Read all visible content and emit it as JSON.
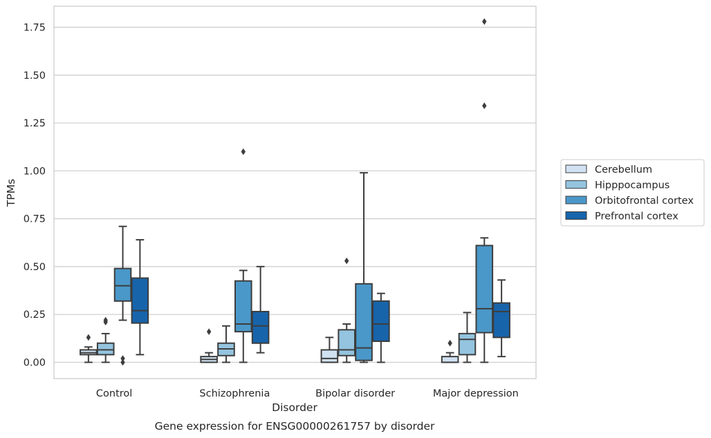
{
  "chart_data": {
    "type": "box",
    "title": "",
    "caption": "Gene expression for ENSG00000261757 by disorder",
    "xlabel": "Disorder",
    "ylabel": "TPMs",
    "categories": [
      "Control",
      "Schizophrenia",
      "Bipolar disorder",
      "Major depression"
    ],
    "ylim": [
      -0.085,
      1.86
    ],
    "yticks": [
      0.0,
      0.25,
      0.5,
      0.75,
      1.0,
      1.25,
      1.5,
      1.75
    ],
    "ytick_labels": [
      "0.00",
      "0.25",
      "0.50",
      "0.75",
      "1.00",
      "1.25",
      "1.50",
      "1.75"
    ],
    "grid": "horizontal",
    "legend": "right",
    "colors": [
      "#d0e1f2",
      "#94c4df",
      "#4a98c9",
      "#1764ab"
    ],
    "series": [
      {
        "name": "Cerebellum",
        "boxes": [
          {
            "whisker_low": 0.0,
            "q1": 0.04,
            "median": 0.05,
            "q3": 0.065,
            "whisker_high": 0.08,
            "outliers": [
              0.13
            ]
          },
          {
            "whisker_low": 0.0,
            "q1": 0.0,
            "median": 0.015,
            "q3": 0.03,
            "whisker_high": 0.05,
            "outliers": [
              0.16
            ]
          },
          {
            "whisker_low": 0.0,
            "q1": 0.0,
            "median": 0.02,
            "q3": 0.065,
            "whisker_high": 0.13,
            "outliers": []
          },
          {
            "whisker_low": 0.0,
            "q1": 0.0,
            "median": 0.0,
            "q3": 0.03,
            "whisker_high": 0.05,
            "outliers": [
              0.1
            ]
          }
        ]
      },
      {
        "name": "Hipppocampus",
        "boxes": [
          {
            "whisker_low": 0.0,
            "q1": 0.04,
            "median": 0.065,
            "q3": 0.1,
            "whisker_high": 0.15,
            "outliers": [
              0.21,
              0.22
            ]
          },
          {
            "whisker_low": 0.0,
            "q1": 0.035,
            "median": 0.07,
            "q3": 0.1,
            "whisker_high": 0.19,
            "outliers": []
          },
          {
            "whisker_low": 0.0,
            "q1": 0.035,
            "median": 0.065,
            "q3": 0.17,
            "whisker_high": 0.2,
            "outliers": [
              0.53
            ]
          },
          {
            "whisker_low": 0.0,
            "q1": 0.04,
            "median": 0.12,
            "q3": 0.15,
            "whisker_high": 0.26,
            "outliers": []
          }
        ]
      },
      {
        "name": "Orbitofrontal cortex",
        "boxes": [
          {
            "whisker_low": 0.22,
            "q1": 0.32,
            "median": 0.4,
            "q3": 0.49,
            "whisker_high": 0.71,
            "outliers": [
              0.0,
              0.02
            ]
          },
          {
            "whisker_low": 0.0,
            "q1": 0.16,
            "median": 0.2,
            "q3": 0.425,
            "whisker_high": 0.48,
            "outliers": [
              1.1
            ]
          },
          {
            "whisker_low": 0.0,
            "q1": 0.01,
            "median": 0.075,
            "q3": 0.41,
            "whisker_high": 0.99,
            "outliers": []
          },
          {
            "whisker_low": 0.0,
            "q1": 0.155,
            "median": 0.28,
            "q3": 0.61,
            "whisker_high": 0.65,
            "outliers": [
              1.34,
              1.78
            ]
          }
        ]
      },
      {
        "name": "Prefrontal cortex",
        "boxes": [
          {
            "whisker_low": 0.04,
            "q1": 0.205,
            "median": 0.27,
            "q3": 0.44,
            "whisker_high": 0.64,
            "outliers": []
          },
          {
            "whisker_low": 0.05,
            "q1": 0.1,
            "median": 0.19,
            "q3": 0.265,
            "whisker_high": 0.5,
            "outliers": []
          },
          {
            "whisker_low": 0.0,
            "q1": 0.11,
            "median": 0.2,
            "q3": 0.32,
            "whisker_high": 0.36,
            "outliers": []
          },
          {
            "whisker_low": 0.03,
            "q1": 0.13,
            "median": 0.265,
            "q3": 0.31,
            "whisker_high": 0.43,
            "outliers": []
          }
        ]
      }
    ]
  }
}
